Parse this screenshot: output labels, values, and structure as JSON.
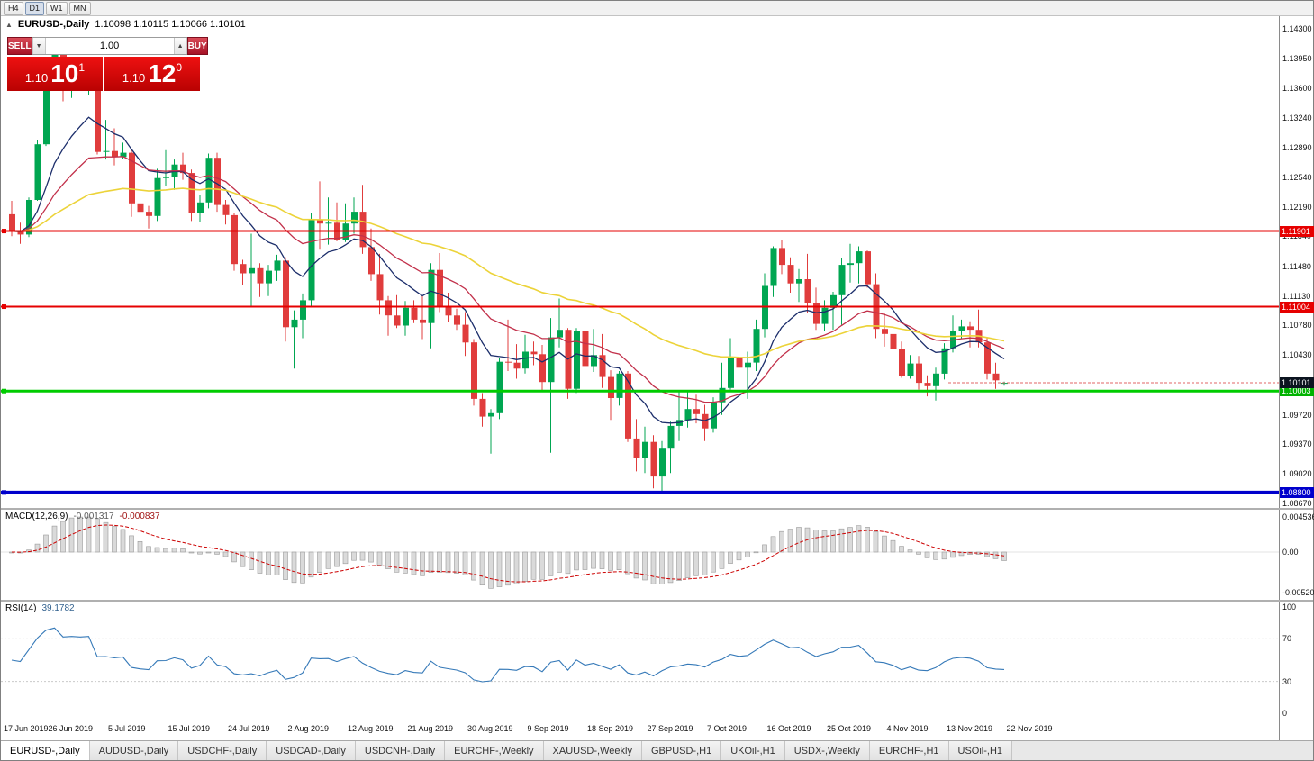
{
  "toolbar": {
    "timeframes": [
      {
        "label": "H4",
        "active": false
      },
      {
        "label": "D1",
        "active": true
      },
      {
        "label": "W1",
        "active": false
      },
      {
        "label": "MN",
        "active": false
      }
    ]
  },
  "icons": {
    "collapse_panel": "▲",
    "volume_decrease": "▼",
    "volume_increase": "▲"
  },
  "chart": {
    "title": "EURUSD-,Daily",
    "ohlc": "1.10098 1.10115 1.10066 1.10101"
  },
  "trade_panel": {
    "sell_label": "SELL",
    "buy_label": "BUY",
    "volume": "1.00",
    "sell_price": {
      "small": "1.10",
      "big": "10",
      "sup": "1"
    },
    "buy_price": {
      "small": "1.10",
      "big": "12",
      "sup": "0"
    }
  },
  "price_axis": {
    "ticks": [
      "1.14300",
      "1.13950",
      "1.13600",
      "1.13240",
      "1.12890",
      "1.12540",
      "1.12190",
      "1.11840",
      "1.11480",
      "1.11130",
      "1.10780",
      "1.10430",
      "1.10080",
      "1.09720",
      "1.09370",
      "1.09020",
      "1.08670"
    ],
    "tags": [
      {
        "text": "1.11901",
        "price": 1.11901,
        "color": "#e60000"
      },
      {
        "text": "1.11004",
        "price": 1.11004,
        "color": "#e60000"
      },
      {
        "text": "1.10003",
        "price": 1.10003,
        "color": "#00b300"
      },
      {
        "text": "1.08800",
        "price": 1.088,
        "color": "#0000cc"
      },
      {
        "text": "1.10101",
        "price": 1.10101,
        "color": "#0c1420"
      }
    ]
  },
  "hlines": [
    {
      "price": 1.11901,
      "color": "#e60000",
      "width": 2
    },
    {
      "price": 1.11004,
      "color": "#e60000",
      "width": 2
    },
    {
      "price": 1.10003,
      "color": "#00cc00",
      "width": 3
    },
    {
      "price": 1.088,
      "color": "#0000cc",
      "width": 4
    }
  ],
  "current_price": {
    "value": 1.10101,
    "color": "#e06666"
  },
  "macd": {
    "label": "MACD(12,26,9)",
    "value_main": "-0.001317",
    "value_signal": "-0.000837",
    "axis": [
      "0.004536",
      "0.00",
      "-0.00520"
    ],
    "params": [
      12,
      26,
      9
    ],
    "histogram_color": "#dadada",
    "histogram_border": "#999999",
    "signal_color": "#cc0000"
  },
  "rsi": {
    "label": "RSI(14)",
    "value": "39.1782",
    "axis": [
      "100",
      "70",
      "30",
      "0"
    ],
    "levels": [
      70,
      30
    ],
    "period": 14,
    "line_color": "#3579b8"
  },
  "tabs": [
    {
      "label": "EURUSD-,Daily",
      "active": true
    },
    {
      "label": "AUDUSD-,Daily",
      "active": false
    },
    {
      "label": "USDCHF-,Daily",
      "active": false
    },
    {
      "label": "USDCAD-,Daily",
      "active": false
    },
    {
      "label": "USDCNH-,Daily",
      "active": false
    },
    {
      "label": "EURCHF-,Weekly",
      "active": false
    },
    {
      "label": "XAUUSD-,Weekly",
      "active": false
    },
    {
      "label": "GBPUSD-,H1",
      "active": false
    },
    {
      "label": "UKOil-,H1",
      "active": false
    },
    {
      "label": "USDX-,Weekly",
      "active": false
    },
    {
      "label": "EURCHF-,H1",
      "active": false
    },
    {
      "label": "USOil-,H1",
      "active": false
    }
  ],
  "chart_data": {
    "type": "candlestick",
    "symbol": "EURUSD-",
    "timeframe": "Daily",
    "price_range": {
      "top": 1.143,
      "bottom": 1.0867
    },
    "x_labels": [
      "17 Jun 2019",
      "26 Jun 2019",
      "5 Jul 2019",
      "15 Jul 2019",
      "24 Jul 2019",
      "2 Aug 2019",
      "12 Aug 2019",
      "21 Aug 2019",
      "30 Aug 2019",
      "9 Sep 2019",
      "18 Sep 2019",
      "27 Sep 2019",
      "7 Oct 2019",
      "16 Oct 2019",
      "25 Oct 2019",
      "4 Nov 2019",
      "13 Nov 2019",
      "22 Nov 2019"
    ],
    "colors": {
      "bull": "#00a651",
      "bear": "#e03c3c"
    },
    "moving_averages": [
      {
        "period": 10,
        "color": "#1c2e6b",
        "width": 1.3
      },
      {
        "period": 21,
        "color": "#c2304a",
        "width": 1.3
      },
      {
        "period": 50,
        "color": "#ecd339",
        "width": 1.6
      }
    ],
    "candles": [
      [
        1.121,
        1.1226,
        1.1184,
        1.119
      ],
      [
        1.119,
        1.12,
        1.1175,
        1.1186
      ],
      [
        1.1186,
        1.123,
        1.1183,
        1.1227
      ],
      [
        1.1227,
        1.1298,
        1.1226,
        1.1293
      ],
      [
        1.1293,
        1.1378,
        1.1291,
        1.1368
      ],
      [
        1.1368,
        1.1406,
        1.1366,
        1.1399
      ],
      [
        1.1399,
        1.1412,
        1.1344,
        1.1365
      ],
      [
        1.1365,
        1.1391,
        1.1348,
        1.137
      ],
      [
        1.137,
        1.1388,
        1.136,
        1.1368
      ],
      [
        1.1368,
        1.1394,
        1.1352,
        1.1373
      ],
      [
        1.1367,
        1.1375,
        1.1281,
        1.1284
      ],
      [
        1.1284,
        1.1322,
        1.1275,
        1.1285
      ],
      [
        1.1285,
        1.1312,
        1.1268,
        1.1278
      ],
      [
        1.1278,
        1.1295,
        1.1276,
        1.1283
      ],
      [
        1.1283,
        1.1286,
        1.1207,
        1.1223
      ],
      [
        1.1223,
        1.1234,
        1.1206,
        1.1213
      ],
      [
        1.1213,
        1.122,
        1.1193,
        1.1208
      ],
      [
        1.1208,
        1.1264,
        1.1202,
        1.1253
      ],
      [
        1.1253,
        1.1286,
        1.1243,
        1.1254
      ],
      [
        1.1254,
        1.1275,
        1.1239,
        1.1269
      ],
      [
        1.1269,
        1.1283,
        1.1251,
        1.1259
      ],
      [
        1.1259,
        1.1263,
        1.1202,
        1.1211
      ],
      [
        1.1211,
        1.1233,
        1.1201,
        1.1224
      ],
      [
        1.1224,
        1.1282,
        1.1217,
        1.1277
      ],
      [
        1.1277,
        1.1283,
        1.1213,
        1.1221
      ],
      [
        1.1221,
        1.1227,
        1.1198,
        1.1209
      ],
      [
        1.1209,
        1.1211,
        1.1143,
        1.1151
      ],
      [
        1.1151,
        1.1156,
        1.1126,
        1.114
      ],
      [
        1.114,
        1.1187,
        1.1101,
        1.1146
      ],
      [
        1.1146,
        1.1152,
        1.1112,
        1.1128
      ],
      [
        1.1128,
        1.115,
        1.1113,
        1.1143
      ],
      [
        1.1143,
        1.1162,
        1.1131,
        1.1155
      ],
      [
        1.1155,
        1.1159,
        1.1059,
        1.1076
      ],
      [
        1.1076,
        1.1096,
        1.1027,
        1.1085
      ],
      [
        1.1085,
        1.1116,
        1.1063,
        1.1108
      ],
      [
        1.1108,
        1.1211,
        1.1101,
        1.1203
      ],
      [
        1.1203,
        1.1249,
        1.1168,
        1.1199
      ],
      [
        1.1199,
        1.123,
        1.1174,
        1.12
      ],
      [
        1.12,
        1.1224,
        1.1178,
        1.118
      ],
      [
        1.118,
        1.1223,
        1.1177,
        1.1199
      ],
      [
        1.1199,
        1.123,
        1.1187,
        1.1213
      ],
      [
        1.1213,
        1.1245,
        1.1163,
        1.1171
      ],
      [
        1.1171,
        1.1193,
        1.1131,
        1.1139
      ],
      [
        1.1139,
        1.1163,
        1.1091,
        1.1108
      ],
      [
        1.1108,
        1.1113,
        1.1066,
        1.109
      ],
      [
        1.109,
        1.1114,
        1.1075,
        1.1078
      ],
      [
        1.1078,
        1.1107,
        1.1066,
        1.1099
      ],
      [
        1.1099,
        1.1108,
        1.1081,
        1.1085
      ],
      [
        1.1085,
        1.1113,
        1.1062,
        1.1081
      ],
      [
        1.1081,
        1.1152,
        1.1051,
        1.1144
      ],
      [
        1.1144,
        1.1164,
        1.1094,
        1.1101
      ],
      [
        1.1101,
        1.1117,
        1.1082,
        1.109
      ],
      [
        1.109,
        1.1098,
        1.1073,
        1.1079
      ],
      [
        1.1079,
        1.1094,
        1.1042,
        1.1058
      ],
      [
        1.1058,
        1.1062,
        1.0983,
        1.0991
      ],
      [
        1.0991,
        1.0998,
        1.0958,
        1.097
      ],
      [
        1.097,
        1.0979,
        1.0926,
        1.0974
      ],
      [
        1.0974,
        1.1039,
        1.0967,
        1.1035
      ],
      [
        1.1035,
        1.1085,
        1.1024,
        1.1034
      ],
      [
        1.1034,
        1.1056,
        1.1015,
        1.1027
      ],
      [
        1.1027,
        1.1067,
        1.1021,
        1.1047
      ],
      [
        1.1047,
        1.1059,
        1.1031,
        1.1044
      ],
      [
        1.1044,
        1.1055,
        1.0999,
        1.1011
      ],
      [
        1.1011,
        1.1087,
        1.0927,
        1.1064
      ],
      [
        1.1064,
        1.111,
        1.1052,
        1.1073
      ],
      [
        1.1073,
        1.1075,
        1.0991,
        1.1003
      ],
      [
        1.1003,
        1.1075,
        1.0998,
        1.1072
      ],
      [
        1.1072,
        1.1076,
        1.1013,
        1.103
      ],
      [
        1.103,
        1.1074,
        1.1023,
        1.1043
      ],
      [
        1.1043,
        1.1068,
        1.1004,
        1.1017
      ],
      [
        1.1017,
        1.1025,
        1.0966,
        1.0992
      ],
      [
        1.0992,
        1.1024,
        1.0983,
        1.1021
      ],
      [
        1.1021,
        1.1024,
        1.094,
        1.0944
      ],
      [
        1.0944,
        1.0967,
        1.0905,
        1.0921
      ],
      [
        1.0921,
        1.0958,
        1.0903,
        1.094
      ],
      [
        1.094,
        1.0948,
        1.0885,
        1.0899
      ],
      [
        1.0899,
        1.0941,
        1.0879,
        1.0932
      ],
      [
        1.0932,
        1.0964,
        1.0903,
        1.0959
      ],
      [
        1.0959,
        1.0999,
        1.0941,
        1.0966
      ],
      [
        1.0966,
        1.0999,
        1.0957,
        1.0979
      ],
      [
        1.0979,
        1.0996,
        1.0962,
        1.0973
      ],
      [
        1.0973,
        1.0984,
        1.0941,
        1.0956
      ],
      [
        1.0956,
        1.0993,
        1.0951,
        1.0987
      ],
      [
        1.0987,
        1.1034,
        1.0972,
        1.1004
      ],
      [
        1.1004,
        1.1063,
        1.1002,
        1.104
      ],
      [
        1.104,
        1.1043,
        1.1013,
        1.1028
      ],
      [
        1.1028,
        1.1047,
        1.0991,
        1.1034
      ],
      [
        1.1034,
        1.1085,
        1.1024,
        1.1074
      ],
      [
        1.1074,
        1.114,
        1.1064,
        1.1125
      ],
      [
        1.1125,
        1.1172,
        1.1112,
        1.117
      ],
      [
        1.117,
        1.1179,
        1.1139,
        1.115
      ],
      [
        1.115,
        1.1159,
        1.1117,
        1.1128
      ],
      [
        1.1128,
        1.1145,
        1.1106,
        1.1133
      ],
      [
        1.1133,
        1.1163,
        1.1093,
        1.1105
      ],
      [
        1.1105,
        1.1123,
        1.1073,
        1.108
      ],
      [
        1.108,
        1.1108,
        1.1072,
        1.1099
      ],
      [
        1.1099,
        1.1118,
        1.1073,
        1.1114
      ],
      [
        1.1114,
        1.1158,
        1.1079,
        1.115
      ],
      [
        1.115,
        1.1175,
        1.1129,
        1.1152
      ],
      [
        1.1152,
        1.1172,
        1.1128,
        1.1166
      ],
      [
        1.1166,
        1.1167,
        1.1123,
        1.1127
      ],
      [
        1.1127,
        1.114,
        1.1063,
        1.1074
      ],
      [
        1.1074,
        1.1093,
        1.1053,
        1.1068
      ],
      [
        1.1068,
        1.1092,
        1.1035,
        1.105
      ],
      [
        1.105,
        1.1059,
        1.1016,
        1.1018
      ],
      [
        1.1018,
        1.1043,
        1.1015,
        1.1033
      ],
      [
        1.1033,
        1.1042,
        1.1002,
        1.101
      ],
      [
        1.101,
        1.1019,
        1.0994,
        1.1006
      ],
      [
        1.1006,
        1.1028,
        1.0989,
        1.1021
      ],
      [
        1.1021,
        1.1057,
        1.1014,
        1.1051
      ],
      [
        1.1051,
        1.109,
        1.1046,
        1.1071
      ],
      [
        1.1071,
        1.1085,
        1.1062,
        1.1077
      ],
      [
        1.1077,
        1.1083,
        1.1052,
        1.1073
      ],
      [
        1.1073,
        1.1097,
        1.1052,
        1.1058
      ],
      [
        1.1058,
        1.1063,
        1.1014,
        1.1021
      ],
      [
        1.1021,
        1.1034,
        1.1003,
        1.1013
      ],
      [
        1.10098,
        1.10115,
        1.10066,
        1.10101
      ]
    ]
  }
}
